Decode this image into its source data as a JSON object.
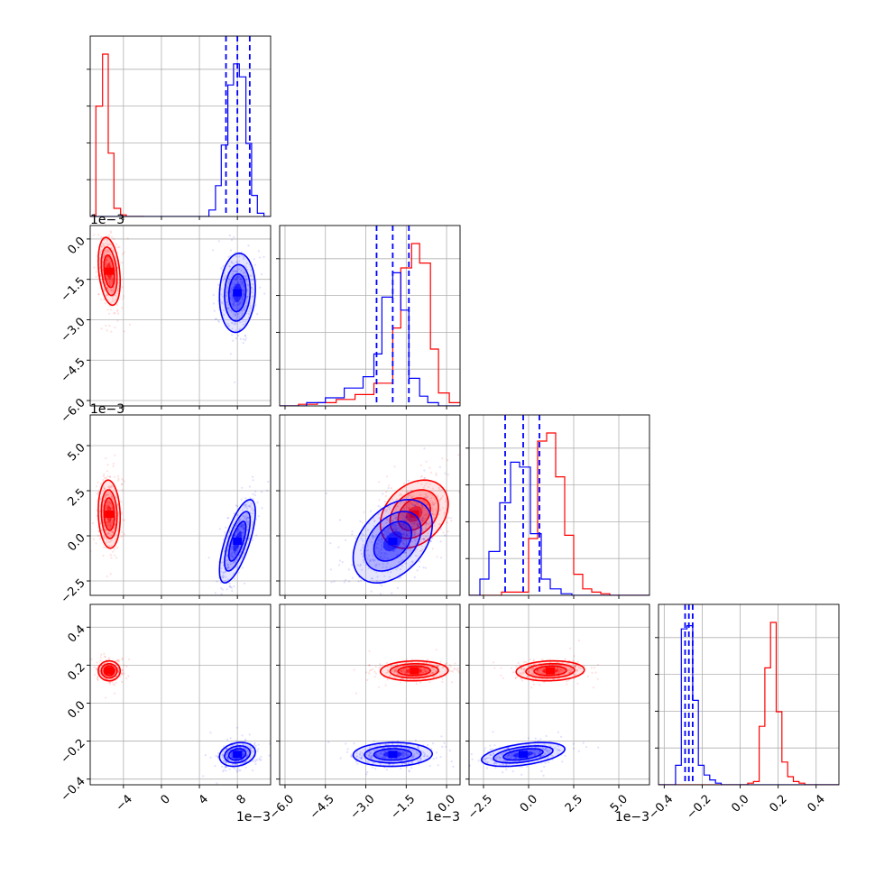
{
  "chart_data": {
    "type": "corner",
    "grid": true,
    "series": [
      {
        "color": "#ff0000"
      },
      {
        "color": "#0000ff"
      }
    ],
    "parameters": [
      {
        "range": [
          -0.0075,
          0.0115
        ],
        "ticks": [
          -0.004,
          0,
          0.004,
          0.008
        ],
        "tick_labels": [
          "−4",
          "0",
          "4",
          "8"
        ],
        "scale_label": "1e−3"
      },
      {
        "range": [
          -0.0062,
          0.0005
        ],
        "ticks": [
          -0.006,
          -0.0045,
          -0.003,
          -0.0015,
          0.0
        ],
        "tick_labels": [
          "−6.0",
          "−4.5",
          "−3.0",
          "−1.5",
          "0.0"
        ],
        "scale_label": "1e−3"
      },
      {
        "range": [
          -0.0033,
          0.0067
        ],
        "ticks": [
          -0.0025,
          0.0,
          0.0025,
          0.005
        ],
        "tick_labels": [
          "−2.5",
          "0.0",
          "2.5",
          "5.0"
        ],
        "scale_label": "1e−3"
      },
      {
        "range": [
          -0.43,
          0.52
        ],
        "ticks": [
          -0.4,
          -0.2,
          0.0,
          0.2,
          0.4
        ],
        "tick_labels": [
          "−0.4",
          "−0.2",
          "0.0",
          "0.2",
          "0.4"
        ]
      }
    ],
    "quantiles": [
      [
        0.0068,
        0.008,
        0.0093
      ],
      [
        -0.0026,
        -0.002,
        -0.0014
      ],
      [
        -0.0013,
        -0.0003,
        0.0006
      ],
      [
        -0.29,
        -0.27,
        -0.25
      ]
    ],
    "red": {
      "means": [
        -0.0055,
        -0.0012,
        0.0012,
        0.17
      ],
      "sds": [
        0.00055,
        0.0006,
        0.0009,
        0.025
      ],
      "hist": [
        {
          "edges": [
            -0.0075,
            -0.0069,
            -0.0062,
            -0.0056,
            -0.005,
            -0.0043,
            -0.0037,
            -0.0031,
            -0.0024,
            -0.0018
          ],
          "counts": [
            0,
            0.68,
            1.0,
            0.39,
            0.05,
            0.01,
            0,
            0,
            0
          ]
        },
        {
          "edges": [
            -0.0062,
            -0.0055,
            -0.0048,
            -0.0041,
            -0.0034,
            -0.0027,
            -0.002,
            -0.0017,
            -0.0013,
            -0.001,
            -0.0006,
            -0.0003,
            0.0001,
            0.0005
          ],
          "counts": [
            0,
            0.01,
            0.02,
            0.04,
            0.07,
            0.14,
            0.48,
            0.85,
            1.0,
            0.88,
            0.35,
            0.08,
            0.02
          ]
        },
        {
          "edges": [
            -0.0033,
            -0.0015,
            0.0,
            0.0005,
            0.001,
            0.0015,
            0.002,
            0.0025,
            0.003,
            0.0035,
            0.004,
            0.0045,
            0.0067
          ],
          "counts": [
            0,
            0.02,
            0.35,
            0.95,
            1.0,
            0.73,
            0.37,
            0.13,
            0.04,
            0.02,
            0.01,
            0
          ]
        },
        {
          "edges": [
            -0.43,
            0.04,
            0.07,
            0.1,
            0.13,
            0.16,
            0.19,
            0.22,
            0.25,
            0.28,
            0.31,
            0.34,
            0.52
          ],
          "counts": [
            0,
            0.01,
            0.02,
            0.36,
            0.72,
            1.0,
            0.45,
            0.14,
            0.05,
            0.02,
            0.01,
            0
          ]
        }
      ]
    },
    "blue": {
      "means": [
        0.008,
        -0.002,
        -0.0003,
        -0.27
      ],
      "sds": [
        0.0009,
        0.0007,
        0.0011,
        0.03
      ],
      "hist": [
        {
          "edges": [
            -0.0075,
            0.005,
            0.0057,
            0.0063,
            0.007,
            0.0076,
            0.0082,
            0.0089,
            0.0095,
            0.0101,
            0.0108,
            0.0115
          ],
          "counts": [
            0,
            0.04,
            0.19,
            0.44,
            0.81,
            0.94,
            0.86,
            0.45,
            0.13,
            0.02,
            0
          ]
        },
        {
          "edges": [
            -0.0062,
            -0.0052,
            -0.0045,
            -0.0038,
            -0.0031,
            -0.0027,
            -0.0024,
            -0.002,
            -0.0017,
            -0.0014,
            -0.001,
            -0.0007,
            -0.0003,
            0.0005
          ],
          "counts": [
            0,
            0.02,
            0.05,
            0.11,
            0.18,
            0.32,
            0.67,
            0.82,
            0.59,
            0.17,
            0.06,
            0.02,
            0
          ]
        },
        {
          "edges": [
            -0.0033,
            -0.0027,
            -0.0022,
            -0.0016,
            -0.001,
            -0.0005,
            0.0001,
            0.0007,
            0.0012,
            0.0018,
            0.0024,
            0.0067
          ],
          "counts": [
            0,
            0.1,
            0.27,
            0.57,
            0.82,
            0.79,
            0.38,
            0.1,
            0.04,
            0.01,
            0
          ]
        },
        {
          "edges": [
            -0.43,
            -0.34,
            -0.31,
            -0.28,
            -0.25,
            -0.22,
            -0.19,
            -0.16,
            -0.13,
            -0.1,
            0.52
          ],
          "counts": [
            0,
            0.12,
            0.96,
            0.98,
            0.52,
            0.12,
            0.06,
            0.03,
            0.01,
            0
          ]
        }
      ]
    }
  }
}
